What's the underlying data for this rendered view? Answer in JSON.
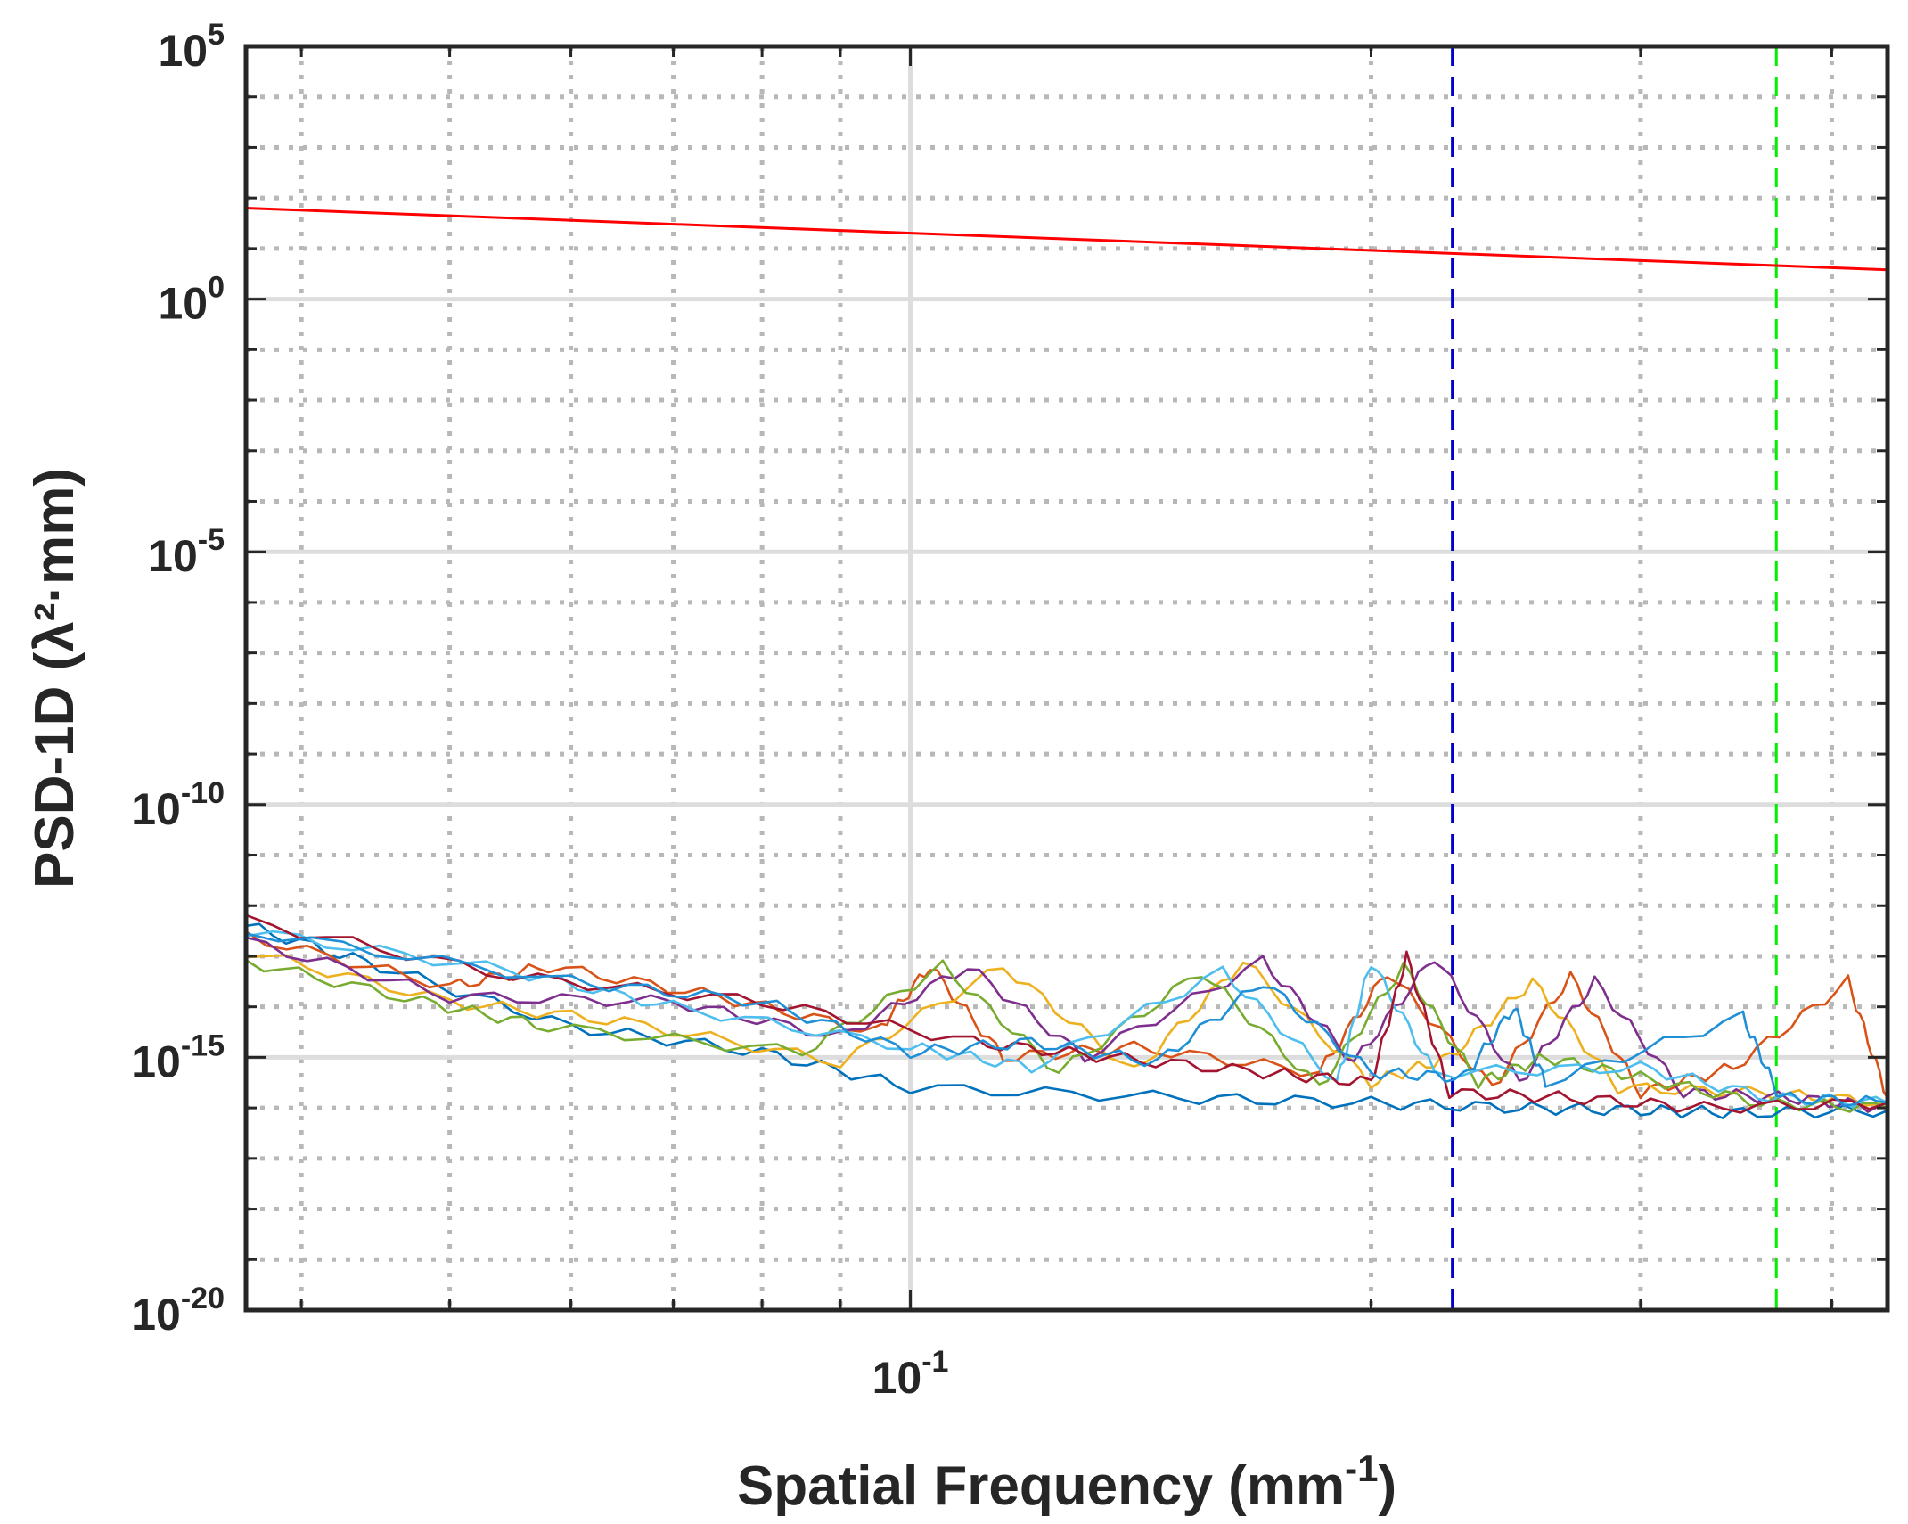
{
  "chart_data": {
    "type": "line",
    "title": "",
    "xlabel": {
      "text": "Spatial Frequency (mm",
      "sup": "-1",
      "suffix": ")"
    },
    "ylabel": "PSD-1D (λ²·mm)",
    "xscale": "log",
    "yscale": "log",
    "xlim": [
      0.0368,
      0.435
    ],
    "ylim": [
      1e-20,
      100000.0
    ],
    "x_ticks": [
      {
        "value": 0.1,
        "base": "10",
        "exp": "-1"
      }
    ],
    "y_ticks": [
      {
        "value": 100000.0,
        "base": "10",
        "exp": "5"
      },
      {
        "value": 1.0,
        "base": "10",
        "exp": "0"
      },
      {
        "value": 1e-05,
        "base": "10",
        "exp": "-5"
      },
      {
        "value": 1e-10,
        "base": "10",
        "exp": "-10"
      },
      {
        "value": 1e-15,
        "base": "10",
        "exp": "-15"
      },
      {
        "value": 1e-20,
        "base": "10",
        "exp": "-20"
      }
    ],
    "grid": true,
    "legend": "none",
    "reference_line": {
      "color": "#ff0000",
      "x": [
        0.0368,
        0.435
      ],
      "y": [
        63,
        3.8
      ]
    },
    "vlines": [
      {
        "x": 0.226,
        "color": "#0000cc",
        "style": "dashed"
      },
      {
        "x": 0.368,
        "color": "#00ee00",
        "style": "dashed"
      }
    ],
    "series": [
      {
        "color": "#0072bd",
        "points": [
          [
            0.0368,
            -12.4
          ],
          [
            0.045,
            -13.2
          ],
          [
            0.06,
            -14.4
          ],
          [
            0.08,
            -14.9
          ],
          [
            0.1,
            -15.6
          ],
          [
            0.15,
            -15.8
          ],
          [
            0.2,
            -15.9
          ],
          [
            0.25,
            -16.0
          ],
          [
            0.3,
            -16.05
          ],
          [
            0.35,
            -16.1
          ],
          [
            0.435,
            -16.05
          ]
        ]
      },
      {
        "color": "#d95319",
        "points": [
          [
            0.0368,
            -12.6
          ],
          [
            0.05,
            -13.6
          ],
          [
            0.058,
            -13.2
          ],
          [
            0.075,
            -13.8
          ],
          [
            0.095,
            -14.5
          ],
          [
            0.103,
            -13.2
          ],
          [
            0.115,
            -15.0
          ],
          [
            0.14,
            -14.8
          ],
          [
            0.185,
            -15.3
          ],
          [
            0.205,
            -13.3
          ],
          [
            0.24,
            -15.6
          ],
          [
            0.27,
            -13.4
          ],
          [
            0.3,
            -15.7
          ],
          [
            0.345,
            -15.2
          ],
          [
            0.41,
            -13.5
          ],
          [
            0.435,
            -15.8
          ]
        ]
      },
      {
        "color": "#edb120",
        "points": [
          [
            0.0368,
            -12.9
          ],
          [
            0.05,
            -13.9
          ],
          [
            0.065,
            -14.3
          ],
          [
            0.09,
            -15.1
          ],
          [
            0.115,
            -13.2
          ],
          [
            0.14,
            -15.3
          ],
          [
            0.165,
            -13.1
          ],
          [
            0.2,
            -15.5
          ],
          [
            0.225,
            -15.0
          ],
          [
            0.255,
            -13.5
          ],
          [
            0.29,
            -15.6
          ],
          [
            0.36,
            -15.7
          ],
          [
            0.435,
            -15.9
          ]
        ]
      },
      {
        "color": "#7e2f8e",
        "points": [
          [
            0.0368,
            -12.7
          ],
          [
            0.05,
            -13.8
          ],
          [
            0.07,
            -13.9
          ],
          [
            0.09,
            -14.6
          ],
          [
            0.109,
            -13.2
          ],
          [
            0.13,
            -15.0
          ],
          [
            0.17,
            -13.1
          ],
          [
            0.195,
            -15.1
          ],
          [
            0.22,
            -13.0
          ],
          [
            0.25,
            -15.5
          ],
          [
            0.28,
            -13.5
          ],
          [
            0.32,
            -15.7
          ],
          [
            0.375,
            -15.8
          ],
          [
            0.435,
            -16.0
          ]
        ]
      },
      {
        "color": "#77ac30",
        "points": [
          [
            0.0368,
            -13.1
          ],
          [
            0.048,
            -13.9
          ],
          [
            0.058,
            -14.4
          ],
          [
            0.085,
            -14.9
          ],
          [
            0.105,
            -13.2
          ],
          [
            0.125,
            -15.3
          ],
          [
            0.155,
            -13.3
          ],
          [
            0.185,
            -15.6
          ],
          [
            0.21,
            -13.2
          ],
          [
            0.235,
            -15.5
          ],
          [
            0.26,
            -15.0
          ],
          [
            0.3,
            -15.4
          ],
          [
            0.36,
            -15.9
          ],
          [
            0.435,
            -16.0
          ]
        ]
      },
      {
        "color": "#4dbeee",
        "points": [
          [
            0.0368,
            -12.5
          ],
          [
            0.055,
            -13.3
          ],
          [
            0.07,
            -14.0
          ],
          [
            0.1,
            -14.8
          ],
          [
            0.12,
            -15.2
          ],
          [
            0.16,
            -13.3
          ],
          [
            0.19,
            -15.5
          ],
          [
            0.2,
            -13.1
          ],
          [
            0.22,
            -15.3
          ],
          [
            0.3,
            -15.2
          ],
          [
            0.365,
            -15.8
          ],
          [
            0.435,
            -15.9
          ]
        ]
      },
      {
        "color": "#a2142f",
        "points": [
          [
            0.0368,
            -12.3
          ],
          [
            0.055,
            -13.4
          ],
          [
            0.08,
            -13.9
          ],
          [
            0.11,
            -14.7
          ],
          [
            0.135,
            -15.0
          ],
          [
            0.17,
            -15.3
          ],
          [
            0.2,
            -15.5
          ],
          [
            0.211,
            -13.0
          ],
          [
            0.225,
            -15.7
          ],
          [
            0.27,
            -15.8
          ],
          [
            0.33,
            -16.0
          ],
          [
            0.435,
            -15.9
          ]
        ]
      },
      {
        "color": "#1f8fd6",
        "points": [
          [
            0.0368,
            -12.5
          ],
          [
            0.06,
            -13.5
          ],
          [
            0.08,
            -13.9
          ],
          [
            0.1,
            -14.9
          ],
          [
            0.12,
            -14.7
          ],
          [
            0.145,
            -15.1
          ],
          [
            0.17,
            -13.5
          ],
          [
            0.2,
            -15.3
          ],
          [
            0.23,
            -15.4
          ],
          [
            0.248,
            -14.0
          ],
          [
            0.26,
            -15.5
          ],
          [
            0.35,
            -14.2
          ],
          [
            0.37,
            -15.8
          ],
          [
            0.435,
            -15.9
          ]
        ]
      }
    ]
  }
}
